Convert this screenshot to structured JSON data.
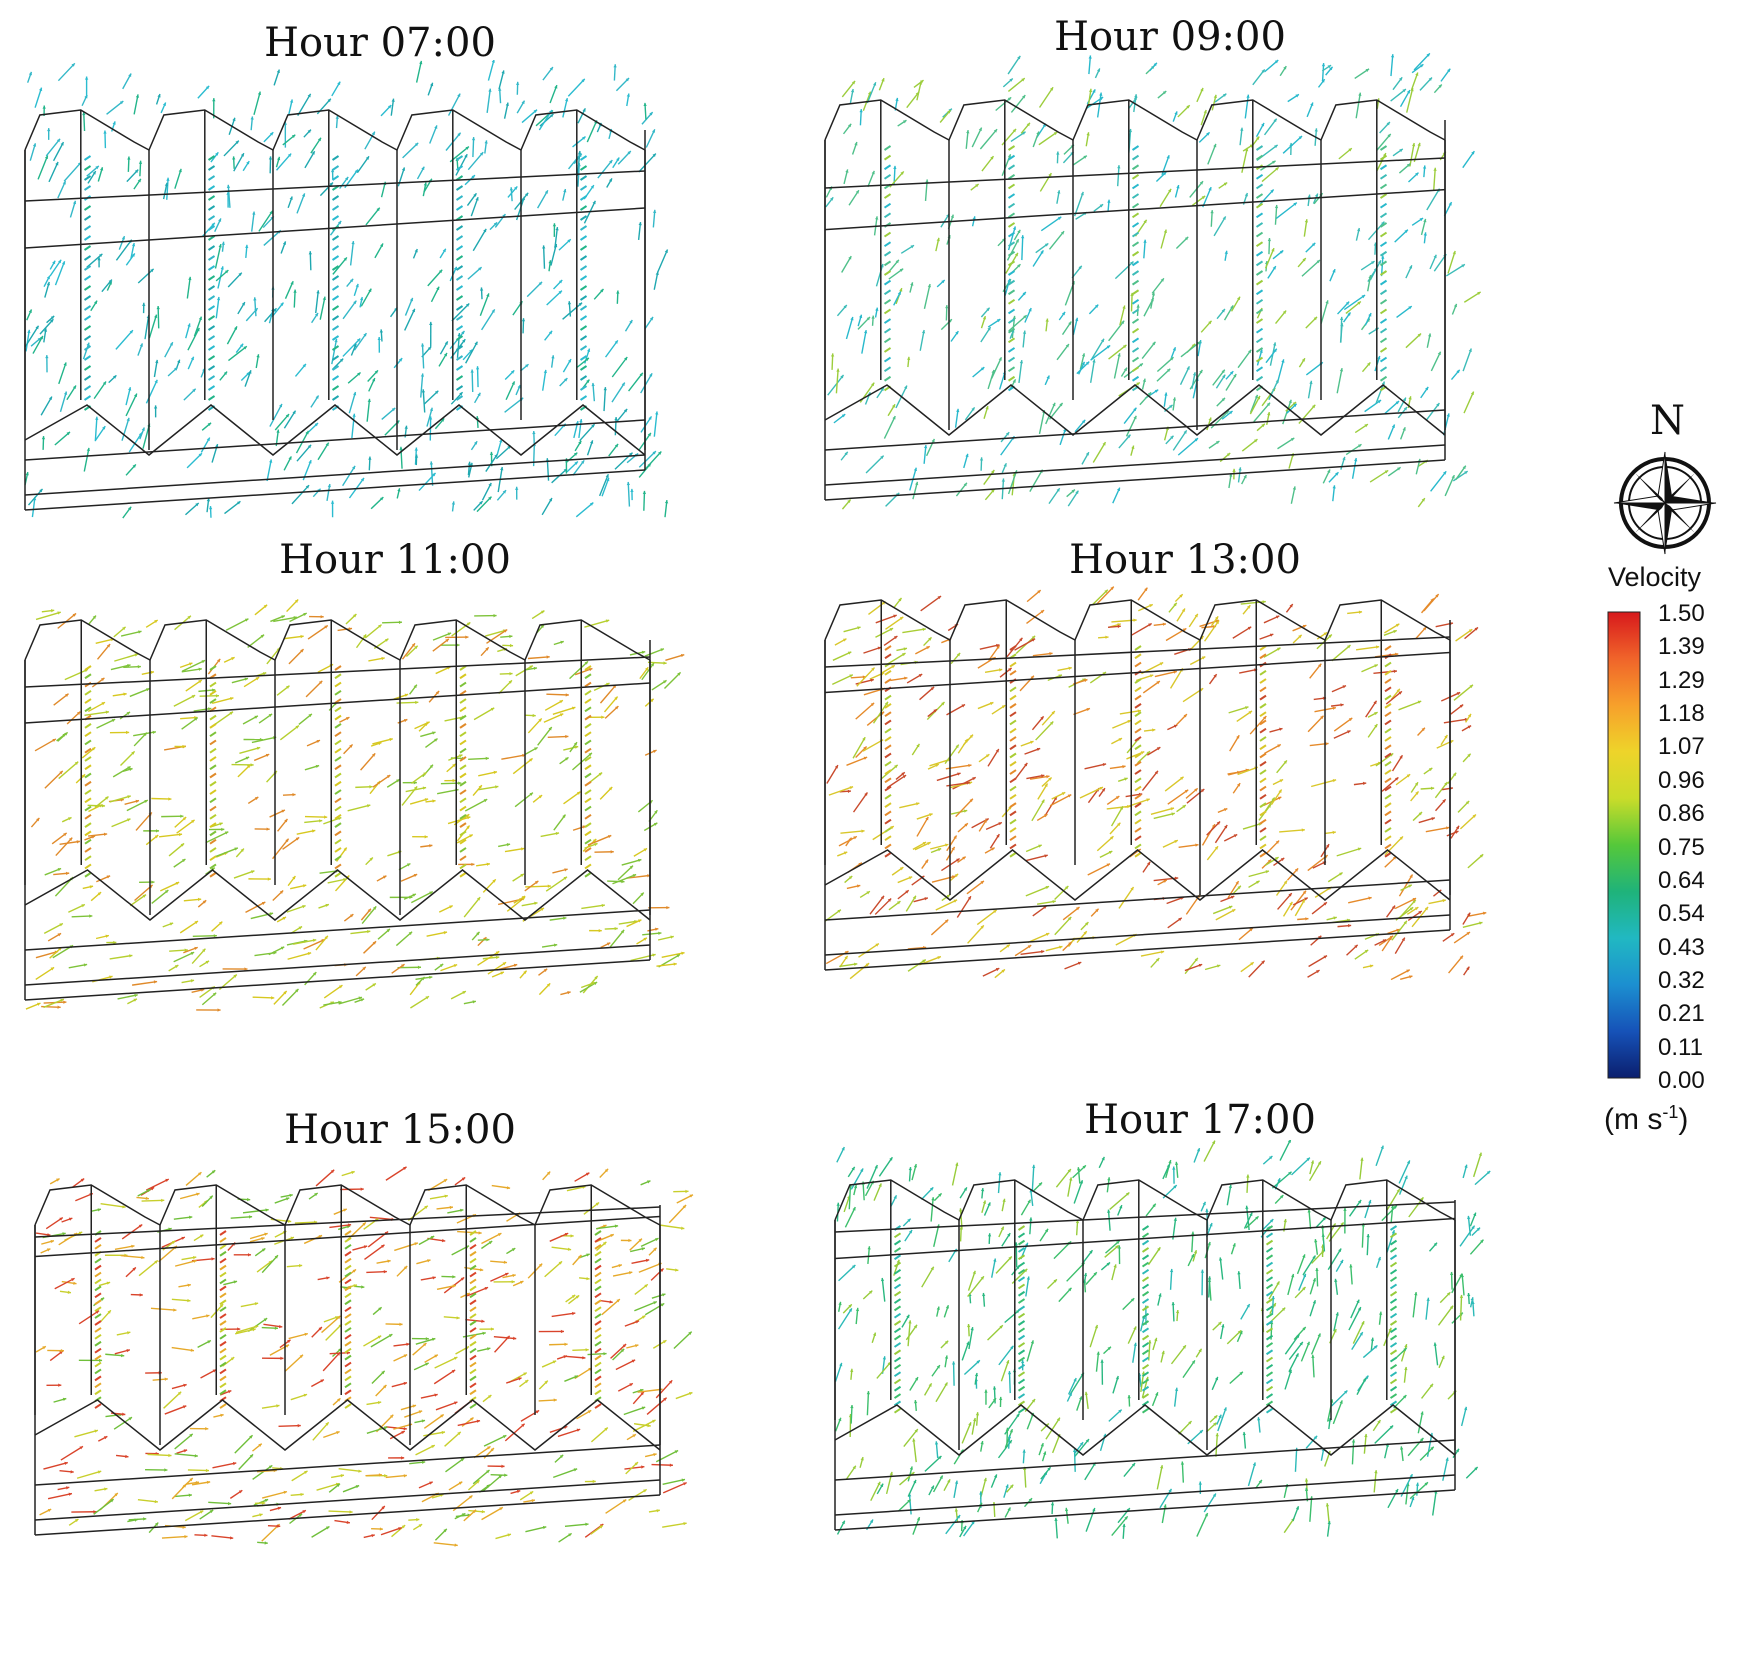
{
  "figure": {
    "panels": [
      {
        "id": "p0700",
        "title": "Hour 07:00",
        "palette": [
          "#33b8c8",
          "#2bbcd0",
          "#22b58a",
          "#1fa8b0"
        ]
      },
      {
        "id": "p0900",
        "title": "Hour 09:00",
        "palette": [
          "#3cbcb8",
          "#4fc08a",
          "#9ccd3c",
          "#28b9cc"
        ]
      },
      {
        "id": "p1100",
        "title": "Hour 11:00",
        "palette": [
          "#b6cf2f",
          "#d7c820",
          "#7ec33a",
          "#e08a2a"
        ]
      },
      {
        "id": "p1300",
        "title": "Hour 13:00",
        "palette": [
          "#d9c72a",
          "#e58a2a",
          "#c94a2c",
          "#a9cd34"
        ]
      },
      {
        "id": "p1500",
        "title": "Hour 15:00",
        "palette": [
          "#c8cf2c",
          "#6fbf3a",
          "#d9442b",
          "#e6a92a"
        ]
      },
      {
        "id": "p1700",
        "title": "Hour 17:00",
        "palette": [
          "#3dbf6c",
          "#2cbab8",
          "#98cc3a",
          "#29b880"
        ]
      }
    ]
  },
  "legend": {
    "north_label": "N",
    "velocity_label": "Velocity",
    "unit_base": "(m s",
    "unit_exp": "-1",
    "unit_close": ")",
    "ticks": [
      "1.50",
      "1.39",
      "1.29",
      "1.18",
      "1.07",
      "0.96",
      "0.86",
      "0.75",
      "0.64",
      "0.54",
      "0.43",
      "0.32",
      "0.21",
      "0.11",
      "0.00"
    ],
    "colors": [
      "#d7191c",
      "#f0642a",
      "#f7a02b",
      "#eed42a",
      "#c9dc2a",
      "#55c83a",
      "#1fb37a",
      "#21b8c2",
      "#1c8fd0",
      "#1652b8",
      "#0b1f6e"
    ]
  }
}
